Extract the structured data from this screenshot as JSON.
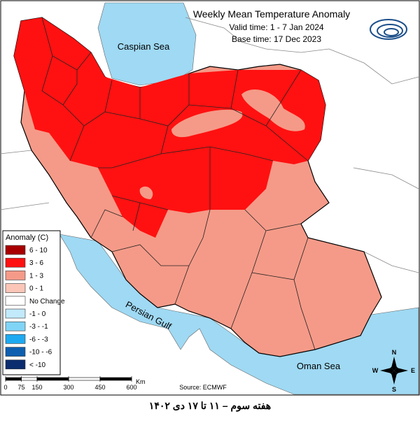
{
  "header": {
    "title": "Weekly Mean Temperature Anomaly",
    "valid_time": "Valid time: 1 - 7 Jan 2024",
    "base_time": "Base time: 17 Dec 2023"
  },
  "water_labels": {
    "caspian": "Caspian Sea",
    "gulf": "Persian Gulf",
    "oman": "Oman Sea"
  },
  "legend": {
    "title": "Anomaly (C)",
    "items": [
      {
        "label": "6 - 10",
        "color": "#a80000"
      },
      {
        "label": "3 - 6",
        "color": "#ff1111"
      },
      {
        "label": "1 - 3",
        "color": "#f59a88"
      },
      {
        "label": "0 - 1",
        "color": "#fbc6b8"
      },
      {
        "label": "No Change",
        "color": "#ffffff"
      },
      {
        "label": "-1 - 0",
        "color": "#c2eafb"
      },
      {
        "label": "-3 - -1",
        "color": "#80d4f6"
      },
      {
        "label": "-6 - -3",
        "color": "#1eaaf1"
      },
      {
        "label": "-10 - -6",
        "color": "#0e5fb0"
      },
      {
        "label": "< -10",
        "color": "#0b2c6e"
      }
    ]
  },
  "scale_bar": {
    "ticks": [
      0,
      75,
      150,
      300,
      450,
      600
    ],
    "unit": "Km"
  },
  "source": "Source: ECMWF",
  "compass": {
    "n": "N",
    "e": "E",
    "s": "S",
    "w": "W"
  },
  "caption": "هفته سوم – ۱۱ تا ۱۷ دی ۱۴۰۲"
}
